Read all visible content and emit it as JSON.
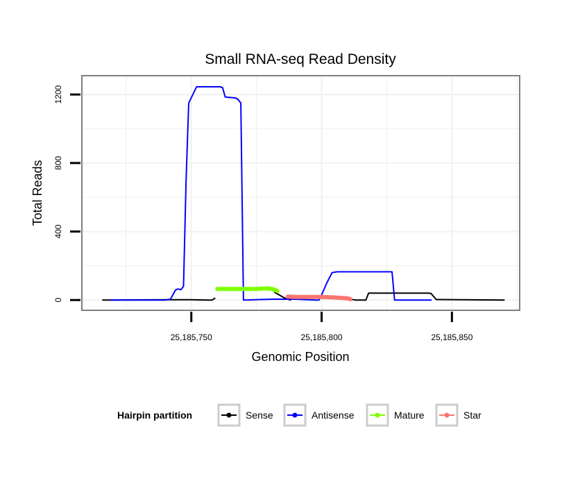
{
  "chart_data": {
    "type": "line",
    "title": "Small RNA-seq Read Density",
    "xlabel": "Genomic Position",
    "ylabel": "Total Reads",
    "xlim": [
      25185708,
      25185876
    ],
    "ylim": [
      -60,
      1310
    ],
    "x_ticks": [
      25185750,
      25185800,
      25185850
    ],
    "x_tick_labels": [
      "25,185,750",
      "25,185,800",
      "25,185,850"
    ],
    "y_ticks": [
      0,
      400,
      800,
      1200
    ],
    "y_tick_labels": [
      "0",
      "400",
      "800",
      "1200"
    ],
    "grid": true,
    "legend": {
      "title": "Hairpin partition",
      "position": "bottom",
      "entries": [
        {
          "name": "Sense",
          "color": "#000000"
        },
        {
          "name": "Antisense",
          "color": "#0000ff"
        },
        {
          "name": "Mature",
          "color": "#7fff00"
        },
        {
          "name": "Star",
          "color": "#f8766d"
        }
      ]
    },
    "series": [
      {
        "name": "Sense",
        "color": "#000000",
        "x": [
          25185716,
          25185740,
          25185750,
          25185756,
          25185758,
          25185759
        ],
        "y": [
          0,
          2,
          2,
          0,
          0,
          10
        ]
      },
      {
        "name": "Sense",
        "color": "#000000",
        "x": [
          25185782,
          25185786,
          25185788
        ],
        "y": [
          45,
          10,
          0
        ]
      },
      {
        "name": "Sense",
        "color": "#000000",
        "x": [
          25185811,
          25185813,
          25185817,
          25185818,
          25185829,
          25185841,
          25185842,
          25185844,
          25185870
        ],
        "y": [
          5,
          0,
          0,
          40,
          40,
          40,
          38,
          3,
          0
        ]
      },
      {
        "name": "Antisense",
        "color": "#0000ff",
        "x": [
          25185719,
          25185740,
          25185742,
          25185744,
          25185745,
          25185746,
          25185747,
          25185748,
          25185749,
          25185752,
          25185761,
          25185762,
          25185763,
          25185767,
          25185768,
          25185769,
          25185770,
          25185781,
          25185790,
          25185798,
          25185799,
          25185800,
          25185802,
          25185804,
          25185806,
          25185816,
          25185827,
          25185828,
          25185830,
          25185842
        ],
        "y": [
          0,
          0,
          5,
          60,
          65,
          60,
          80,
          700,
          1150,
          1245,
          1245,
          1240,
          1185,
          1180,
          1170,
          1150,
          0,
          5,
          5,
          0,
          0,
          30,
          100,
          160,
          165,
          165,
          165,
          0,
          0,
          0
        ]
      },
      {
        "name": "Mature",
        "color": "#7fff00",
        "x": [
          25185760,
          25185765,
          25185770,
          25185775,
          25185779,
          25185781,
          25185782,
          25185783
        ],
        "y": [
          65,
          65,
          65,
          65,
          68,
          65,
          60,
          52
        ]
      },
      {
        "name": "Star",
        "color": "#f8766d",
        "x": [
          25185787,
          25185790,
          25185795,
          25185800,
          25185805,
          25185808,
          25185810,
          25185811
        ],
        "y": [
          20,
          18,
          18,
          18,
          15,
          12,
          10,
          5
        ]
      }
    ]
  }
}
